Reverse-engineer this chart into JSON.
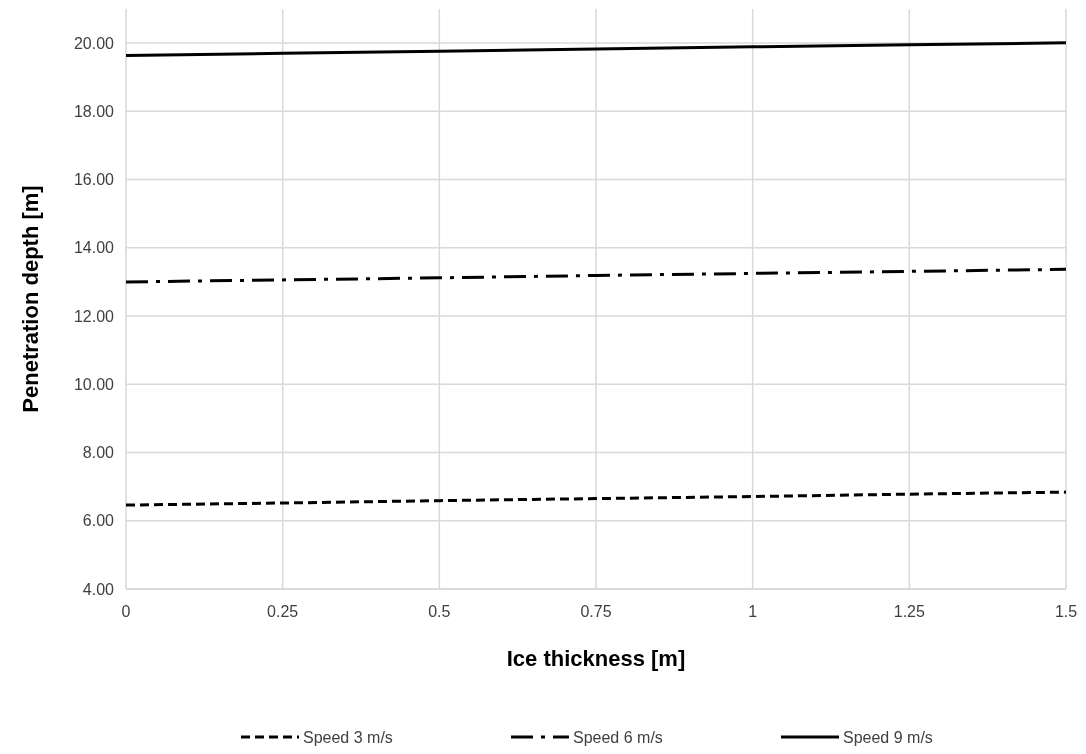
{
  "chart_data": {
    "type": "line",
    "xlabel": "Ice thickness [m]",
    "ylabel": "Penetration depth [m]",
    "x": [
      0,
      0.25,
      0.5,
      0.75,
      1,
      1.25,
      1.5
    ],
    "series": [
      {
        "name": "Speed 3 m/s",
        "color": "#000000",
        "line_style": "dashed",
        "values": [
          6.46,
          6.52,
          6.59,
          6.65,
          6.71,
          6.78,
          6.84
        ]
      },
      {
        "name": "Speed 6 m/s",
        "color": "#000000",
        "line_style": "dashdot",
        "values": [
          13.0,
          13.06,
          13.12,
          13.19,
          13.25,
          13.31,
          13.37
        ]
      },
      {
        "name": "Speed 9 m/s",
        "color": "#000000",
        "line_style": "solid",
        "values": [
          19.64,
          19.7,
          19.76,
          19.83,
          19.89,
          19.95,
          20.01
        ]
      }
    ],
    "xlim": [
      0,
      1.5
    ],
    "xticks": [
      0,
      0.25,
      0.5,
      0.75,
      1,
      1.25,
      1.5
    ],
    "ylim": [
      4,
      21
    ],
    "yticks": [
      {
        "value": 4,
        "label": "4.00"
      },
      {
        "value": 6,
        "label": "6.00"
      },
      {
        "value": 8,
        "label": "8.00"
      },
      {
        "value": 10,
        "label": "10.00"
      },
      {
        "value": 12,
        "label": "12.00"
      },
      {
        "value": 14,
        "label": "14.00"
      },
      {
        "value": 16,
        "label": "16.00"
      },
      {
        "value": 18,
        "label": "18.00"
      },
      {
        "value": 20,
        "label": "20.00"
      }
    ],
    "grid": true,
    "legend": "bottom",
    "marker": "none"
  }
}
